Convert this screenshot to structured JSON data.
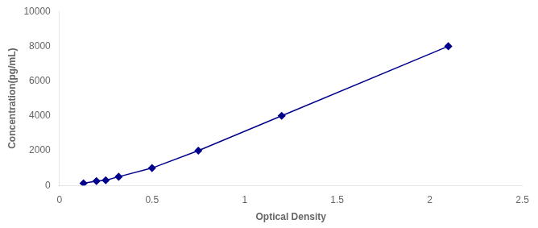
{
  "chart_data": {
    "type": "line",
    "x": [
      0.13,
      0.2,
      0.25,
      0.32,
      0.5,
      0.75,
      1.2,
      2.1
    ],
    "values": [
      125,
      250,
      300,
      500,
      1000,
      2000,
      4000,
      8000
    ],
    "color": "#00008B",
    "marker": "diamond",
    "line_style": "solid",
    "xlabel": "Optical Density",
    "ylabel": "Concentration(pg/mL)",
    "xlim": [
      0,
      2.5
    ],
    "ylim": [
      0,
      10000
    ],
    "xticks": [
      0,
      0.5,
      1,
      1.5,
      2,
      2.5
    ],
    "yticks": [
      0,
      2000,
      4000,
      6000,
      8000,
      10000
    ],
    "grid": false
  }
}
